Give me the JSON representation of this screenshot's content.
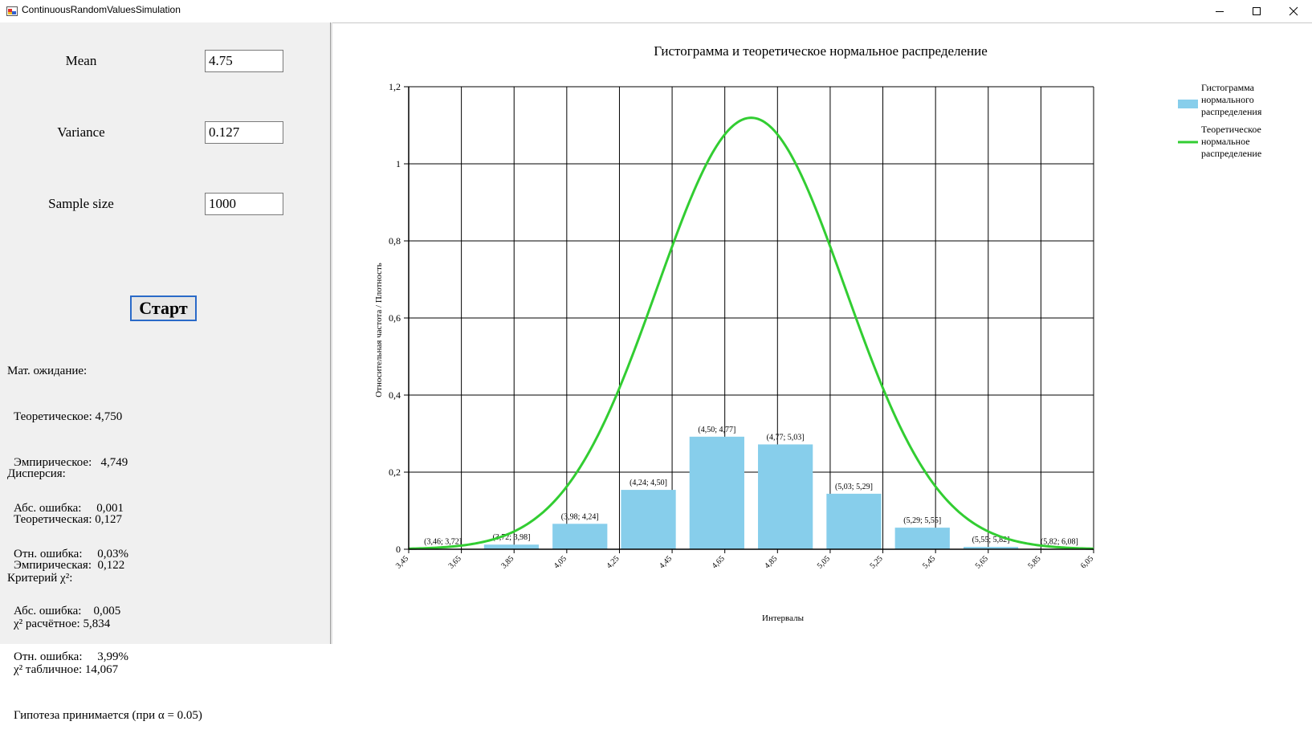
{
  "window": {
    "title": "ContinuousRandomValuesSimulation"
  },
  "form": {
    "mean_label": "Mean",
    "mean_value": "4.75",
    "variance_label": "Variance",
    "variance_value": "0.127",
    "sample_label": "Sample size",
    "sample_value": "1000",
    "start_label": "Старт"
  },
  "stats": {
    "mean_header": "Мат. ожидание:",
    "mean_lines": [
      "Теоретическое: 4,750",
      "Эмпирическое:   4,749",
      "Абс. ошибка:     0,001",
      "Отн. ошибка:     0,03%"
    ],
    "var_header": "Дисперсия:",
    "var_lines": [
      "Теоретическая: 0,127",
      "Эмпирическая:  0,122",
      "Абс. ошибка:    0,005",
      "Отн. ошибка:     3,99%"
    ],
    "chi_header": "Критерий χ²:",
    "chi_lines": [
      "χ² расчётное: 5,834",
      "χ² табличное: 14,067",
      "Гипотеза принимается (при α = 0.05)"
    ]
  },
  "chart_data": {
    "type": "bar",
    "title": "Гистограмма и теоретическое нормальное распределение",
    "xlabel": "Интервалы",
    "ylabel": "Относительная частота / Плотность",
    "xlim": [
      3.45,
      6.05
    ],
    "ylim": [
      0,
      1.2
    ],
    "yticks": [
      "0",
      "0,2",
      "0,4",
      "0,6",
      "0,8",
      "1",
      "1,2"
    ],
    "xticks": [
      "3,45",
      "3,65",
      "3,85",
      "4,05",
      "4,25",
      "4,45",
      "4,65",
      "4,85",
      "5,05",
      "5,25",
      "5,45",
      "5,65",
      "5,85",
      "6,05"
    ],
    "grid": true,
    "legend_position": "top-right",
    "bars": {
      "name": "Гистограмма нормального распределения",
      "color": "#87ceeb",
      "categories": [
        "(3,46; 3,72]",
        "(3,72; 3,98]",
        "(3,98; 4,24]",
        "(4,24; 4,50]",
        "(4,50; 4,77]",
        "(4,77; 5,03]",
        "(5,03; 5,29]",
        "(5,29; 5,55]",
        "(5,55; 5,82]",
        "(5,82; 6,08]"
      ],
      "values": [
        0.001,
        0.012,
        0.066,
        0.154,
        0.292,
        0.272,
        0.144,
        0.056,
        0.006,
        0.001
      ]
    },
    "curve": {
      "name": "Теоретическое нормальное распределение",
      "color": "#32cd32",
      "mean": 4.75,
      "variance": 0.127
    }
  }
}
